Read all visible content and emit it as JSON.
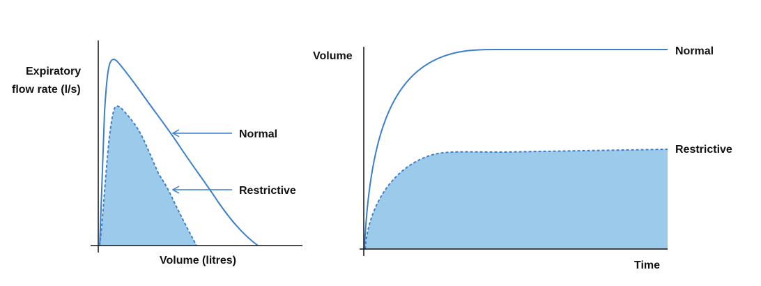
{
  "colors": {
    "curve": "#3b7fcb",
    "fill": "#9ccaea",
    "axis": "#111111",
    "text": "#111111"
  },
  "flow_volume": {
    "ylabel_line1": "Expiratory",
    "ylabel_line2": "flow rate (l/s)",
    "xlabel": "Volume (litres)",
    "normal_label": "Normal",
    "restrictive_label": "Restrictive"
  },
  "volume_time": {
    "ylabel": "Volume",
    "xlabel": "Time",
    "normal_label": "Normal",
    "restrictive_label": "Restrictive"
  }
}
